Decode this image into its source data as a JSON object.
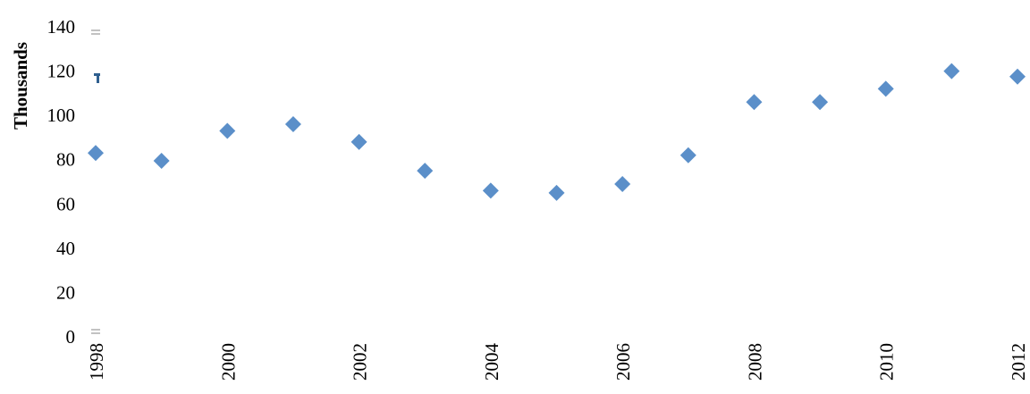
{
  "chart_data": {
    "type": "scatter",
    "title": "",
    "xlabel": "",
    "ylabel": "Thousands",
    "ylim": [
      0,
      140
    ],
    "xlim": [
      1998,
      2012
    ],
    "y_ticks": [
      "0",
      "20",
      "40",
      "60",
      "80",
      "100",
      "120",
      "140"
    ],
    "x_ticks": [
      "1998",
      "2000",
      "2002",
      "2004",
      "2006",
      "2008",
      "2010",
      "2012"
    ],
    "grid": false,
    "legend": "none",
    "marker": "diamond",
    "color": "#5B8FC9",
    "series": [
      {
        "x": [
          1998,
          1999,
          2000,
          2001,
          2002,
          2003,
          2004,
          2005,
          2006,
          2007,
          2008,
          2009,
          2010,
          2011,
          2012
        ],
        "values": [
          83,
          79.5,
          93,
          96,
          88,
          75,
          66,
          65,
          69,
          82,
          106,
          106,
          112,
          120,
          117.5
        ]
      }
    ]
  }
}
